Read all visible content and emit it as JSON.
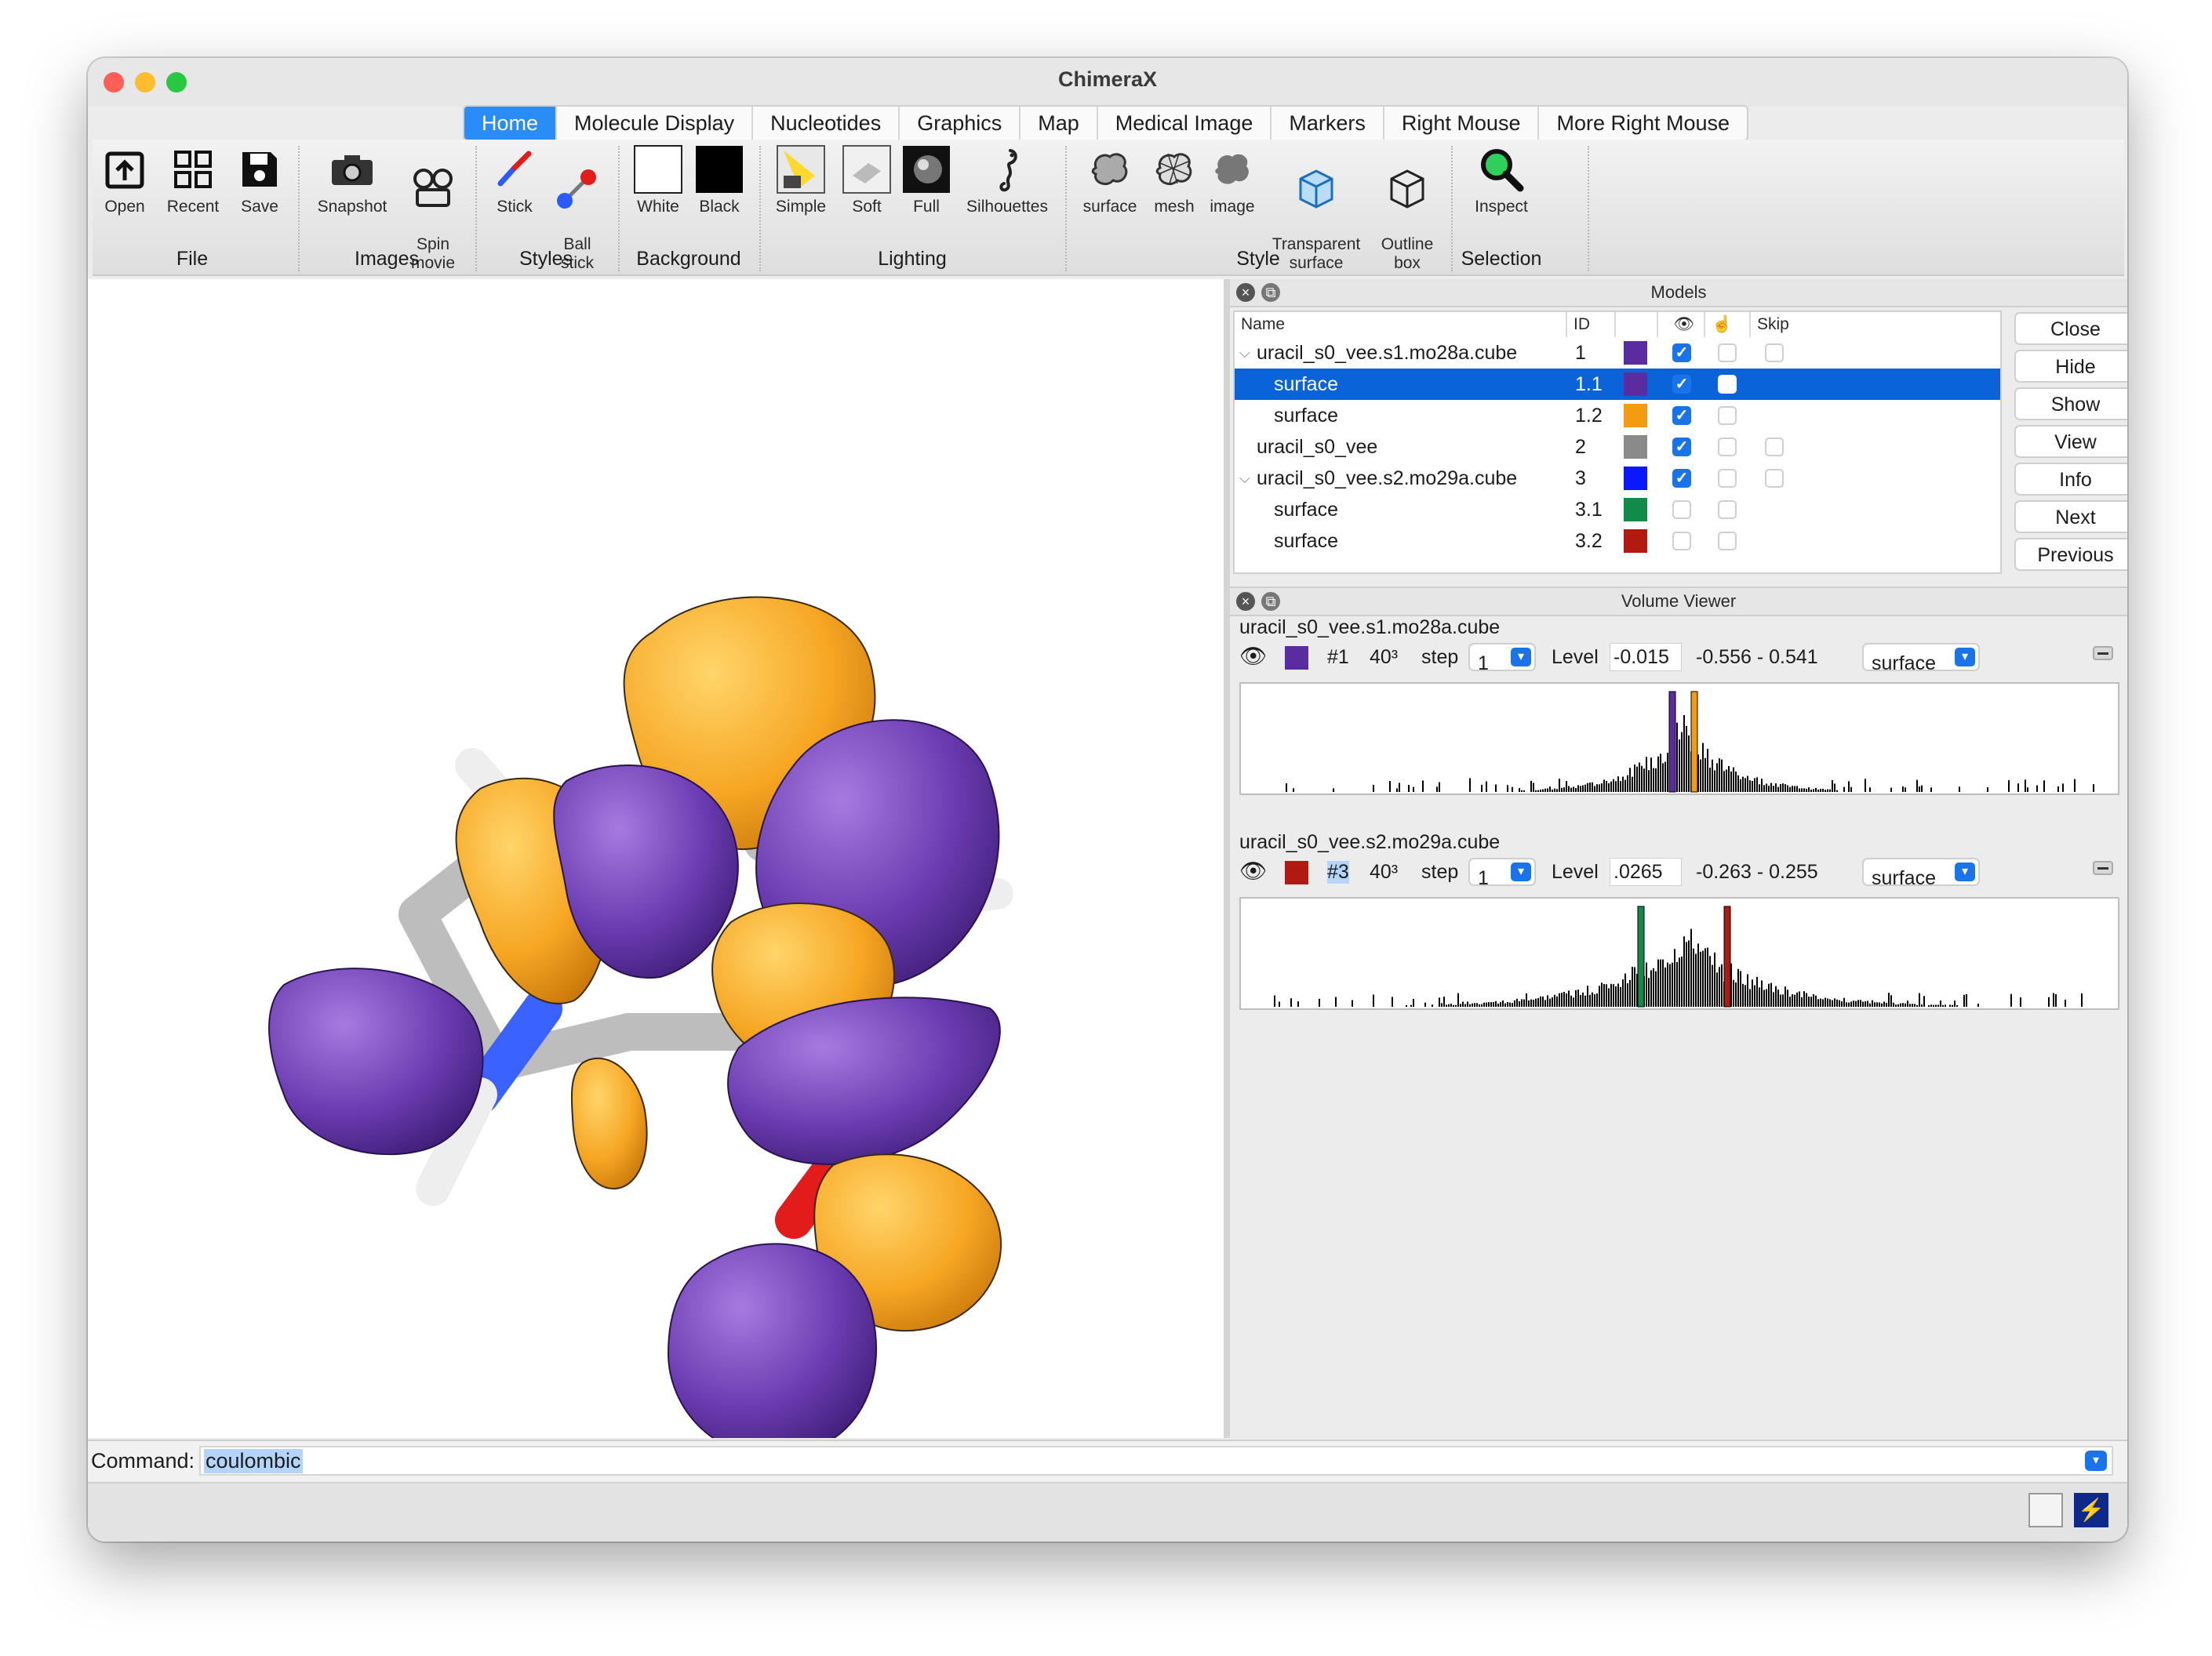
{
  "window": {
    "title": "ChimeraX"
  },
  "tabs": [
    "Home",
    "Molecule Display",
    "Nucleotides",
    "Graphics",
    "Map",
    "Medical Image",
    "Markers",
    "Right Mouse",
    "More Right Mouse"
  ],
  "toolbar": {
    "tools": [
      {
        "label": "Open",
        "icon": "open-icon"
      },
      {
        "label": "Recent",
        "icon": "grid-icon"
      },
      {
        "label": "Save",
        "icon": "floppy-icon"
      },
      {
        "label": "Snapshot",
        "icon": "camera-icon"
      },
      {
        "label": "Spin\nmovie",
        "icon": "film-camera-icon"
      },
      {
        "label": "Stick",
        "icon": "stick-icon"
      },
      {
        "label": "Ball\nstick",
        "icon": "ball-stick-icon"
      },
      {
        "label": "White",
        "icon": "white-square-icon"
      },
      {
        "label": "Black",
        "icon": "black-square-icon"
      },
      {
        "label": "Simple",
        "icon": "simple-lighting-icon"
      },
      {
        "label": "Soft",
        "icon": "soft-lighting-icon"
      },
      {
        "label": "Full",
        "icon": "full-lighting-icon"
      },
      {
        "label": "Silhouettes",
        "icon": "seahorse-icon"
      },
      {
        "label": "surface",
        "icon": "surface-icon"
      },
      {
        "label": "mesh",
        "icon": "mesh-icon"
      },
      {
        "label": "image",
        "icon": "image-style-icon"
      },
      {
        "label": "Transparent\nsurface",
        "icon": "transparent-cube-icon"
      },
      {
        "label": "Outline\nbox",
        "icon": "outline-box-icon"
      },
      {
        "label": "Inspect",
        "icon": "magnifier-icon"
      }
    ],
    "groups": [
      "File",
      "Images",
      "Styles",
      "Background",
      "Lighting",
      "Style",
      "Selection"
    ]
  },
  "models": {
    "title": "Models",
    "headers": {
      "name": "Name",
      "id": "ID",
      "skip": "Skip"
    },
    "rows": [
      {
        "name": "uracil_s0_vee.s1.mo28a.cube",
        "id": "1",
        "color": "#5b2ca0",
        "shown": true,
        "expand": true,
        "indent": false
      },
      {
        "name": "surface",
        "id": "1.1",
        "color": "#5b2ca0",
        "shown": true,
        "expand": false,
        "indent": true,
        "selected": true
      },
      {
        "name": "surface",
        "id": "1.2",
        "color": "#f39c12",
        "shown": true,
        "expand": false,
        "indent": true
      },
      {
        "name": "uracil_s0_vee",
        "id": "2",
        "color": "#8a8a8a",
        "shown": true,
        "expand": false,
        "indent": false
      },
      {
        "name": "uracil_s0_vee.s2.mo29a.cube",
        "id": "3",
        "color": "#0a18ff",
        "shown": true,
        "expand": true,
        "indent": false
      },
      {
        "name": "surface",
        "id": "3.1",
        "color": "#128a4a",
        "shown": false,
        "expand": false,
        "indent": true
      },
      {
        "name": "surface",
        "id": "3.2",
        "color": "#b01a10",
        "shown": false,
        "expand": false,
        "indent": true
      }
    ],
    "buttons": [
      "Close",
      "Hide",
      "Show",
      "View",
      "Info",
      "Next",
      "Previous"
    ]
  },
  "volume_viewer": {
    "title": "Volume Viewer",
    "volumes": [
      {
        "name": "uracil_s0_vee.s1.mo28a.cube",
        "color": "#5b2ca0",
        "id": "#1",
        "size": "40³",
        "step_label": "step",
        "step": "1",
        "level_label": "Level",
        "level": "-0.015",
        "range": "-0.556 - 0.541",
        "style": "surface",
        "markers": [
          "#5b2ca0",
          "#f39c12"
        ]
      },
      {
        "name": "uracil_s0_vee.s2.mo29a.cube",
        "color": "#b01a10",
        "id": "#3",
        "size": "40³",
        "step_label": "step",
        "step": "1",
        "level_label": "Level",
        "level": ".0265",
        "range": "-0.263 - 0.255",
        "style": "surface",
        "markers": [
          "#128a4a",
          "#b01a10"
        ]
      }
    ]
  },
  "command": {
    "label": "Command:",
    "value": "coulombic"
  },
  "colors": {
    "accent": "#2a8cf7",
    "selection": "#0a63d8",
    "orbital_orange": "#f6a623",
    "orbital_purple": "#6a3bb0"
  }
}
